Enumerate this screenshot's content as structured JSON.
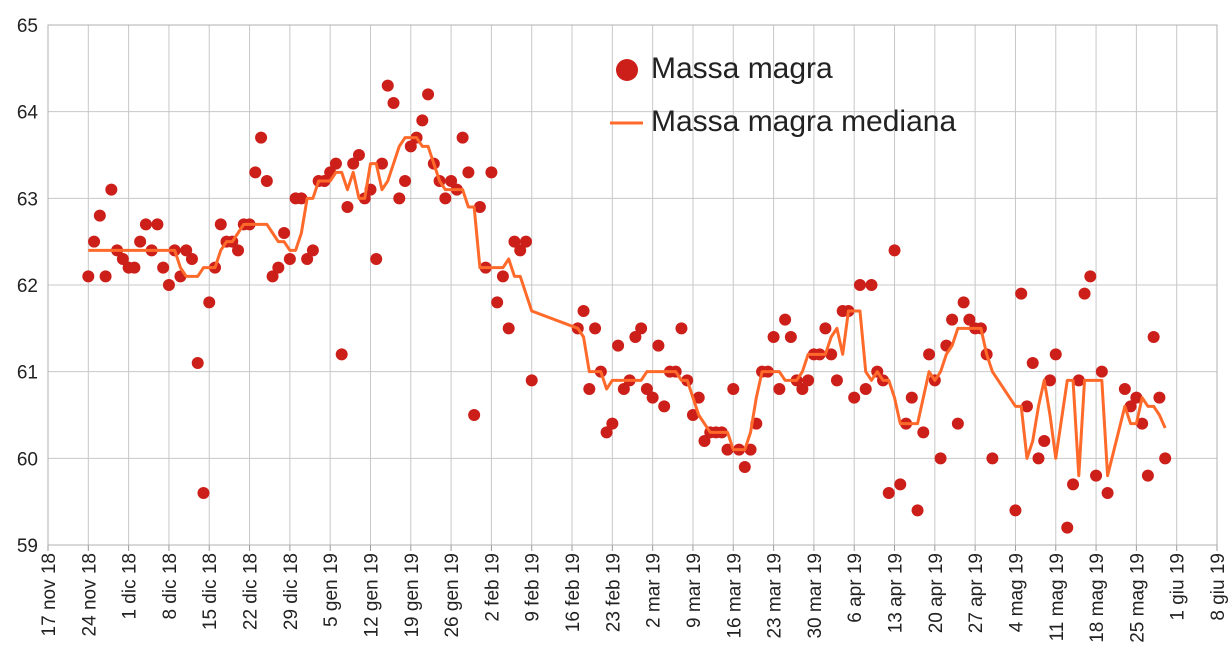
{
  "chart_data": {
    "type": "line",
    "x": [
      "2018-11-24",
      "2018-11-25",
      "2018-11-26",
      "2018-11-27",
      "2018-11-28",
      "2018-11-29",
      "2018-11-30",
      "2018-12-01",
      "2018-12-02",
      "2018-12-03",
      "2018-12-04",
      "2018-12-05",
      "2018-12-06",
      "2018-12-07",
      "2018-12-08",
      "2018-12-09",
      "2018-12-10",
      "2018-12-11",
      "2018-12-12",
      "2018-12-13",
      "2018-12-14",
      "2018-12-15",
      "2018-12-16",
      "2018-12-17",
      "2018-12-18",
      "2018-12-19",
      "2018-12-20",
      "2018-12-21",
      "2018-12-22",
      "2018-12-23",
      "2018-12-24",
      "2018-12-25",
      "2018-12-26",
      "2018-12-27",
      "2018-12-28",
      "2018-12-29",
      "2018-12-30",
      "2018-12-31",
      "2019-01-01",
      "2019-01-02",
      "2019-01-03",
      "2019-01-04",
      "2019-01-05",
      "2019-01-06",
      "2019-01-07",
      "2019-01-08",
      "2019-01-09",
      "2019-01-10",
      "2019-01-11",
      "2019-01-12",
      "2019-01-13",
      "2019-01-14",
      "2019-01-15",
      "2019-01-16",
      "2019-01-17",
      "2019-01-18",
      "2019-01-19",
      "2019-01-20",
      "2019-01-21",
      "2019-01-22",
      "2019-01-23",
      "2019-01-24",
      "2019-01-25",
      "2019-01-26",
      "2019-01-27",
      "2019-01-28",
      "2019-01-29",
      "2019-01-30",
      "2019-01-31",
      "2019-02-01",
      "2019-02-02",
      "2019-02-03",
      "2019-02-04",
      "2019-02-05",
      "2019-02-06",
      "2019-02-07",
      "2019-02-08",
      "2019-02-09",
      "2019-02-17",
      "2019-02-18",
      "2019-02-19",
      "2019-02-20",
      "2019-02-21",
      "2019-02-22",
      "2019-02-23",
      "2019-02-24",
      "2019-02-25",
      "2019-02-26",
      "2019-02-27",
      "2019-02-28",
      "2019-03-01",
      "2019-03-02",
      "2019-03-03",
      "2019-03-04",
      "2019-03-05",
      "2019-03-06",
      "2019-03-07",
      "2019-03-08",
      "2019-03-09",
      "2019-03-10",
      "2019-03-11",
      "2019-03-12",
      "2019-03-13",
      "2019-03-14",
      "2019-03-15",
      "2019-03-16",
      "2019-03-17",
      "2019-03-18",
      "2019-03-19",
      "2019-03-20",
      "2019-03-21",
      "2019-03-22",
      "2019-03-23",
      "2019-03-24",
      "2019-03-25",
      "2019-03-26",
      "2019-03-27",
      "2019-03-28",
      "2019-03-29",
      "2019-03-30",
      "2019-03-31",
      "2019-04-01",
      "2019-04-02",
      "2019-04-03",
      "2019-04-04",
      "2019-04-05",
      "2019-04-06",
      "2019-04-07",
      "2019-04-08",
      "2019-04-09",
      "2019-04-10",
      "2019-04-11",
      "2019-04-12",
      "2019-04-13",
      "2019-04-14",
      "2019-04-15",
      "2019-04-16",
      "2019-04-17",
      "2019-04-18",
      "2019-04-19",
      "2019-04-20",
      "2019-04-21",
      "2019-04-22",
      "2019-04-23",
      "2019-04-24",
      "2019-04-25",
      "2019-04-26",
      "2019-04-27",
      "2019-04-28",
      "2019-04-29",
      "2019-04-30",
      "2019-05-04",
      "2019-05-05",
      "2019-05-06",
      "2019-05-07",
      "2019-05-08",
      "2019-05-09",
      "2019-05-10",
      "2019-05-11",
      "2019-05-13",
      "2019-05-14",
      "2019-05-15",
      "2019-05-16",
      "2019-05-17",
      "2019-05-18",
      "2019-05-19",
      "2019-05-20",
      "2019-05-23",
      "2019-05-24",
      "2019-05-25",
      "2019-05-26",
      "2019-05-27",
      "2019-05-28",
      "2019-05-29",
      "2019-05-30"
    ],
    "series": [
      {
        "name": "Massa magra",
        "type": "scatter",
        "color": "#cc1f1a",
        "values": [
          62.1,
          62.5,
          62.8,
          62.1,
          63.1,
          62.4,
          62.3,
          62.2,
          62.2,
          62.5,
          62.7,
          62.4,
          62.7,
          62.2,
          62.0,
          62.4,
          62.1,
          62.4,
          62.3,
          61.1,
          59.6,
          61.8,
          62.2,
          62.7,
          62.5,
          62.5,
          62.4,
          62.7,
          62.7,
          63.3,
          63.7,
          63.2,
          62.1,
          62.2,
          62.6,
          62.3,
          63.0,
          63.0,
          62.3,
          62.4,
          63.2,
          63.2,
          63.3,
          63.4,
          61.2,
          62.9,
          63.4,
          63.5,
          63.0,
          63.1,
          62.3,
          63.4,
          64.3,
          64.1,
          63.0,
          63.2,
          63.6,
          63.7,
          63.9,
          64.2,
          63.4,
          63.2,
          63.0,
          63.2,
          63.1,
          63.7,
          63.3,
          60.5,
          62.9,
          62.2,
          63.3,
          61.8,
          62.1,
          61.5,
          62.5,
          62.4,
          62.5,
          60.9,
          61.5,
          61.7,
          60.8,
          61.5,
          61.0,
          60.3,
          60.4,
          61.3,
          60.8,
          60.9,
          61.4,
          61.5,
          60.8,
          60.7,
          61.3,
          60.6,
          61.0,
          61.0,
          61.5,
          60.9,
          60.5,
          60.7,
          60.2,
          60.3,
          60.3,
          60.3,
          60.1,
          60.8,
          60.1,
          59.9,
          60.1,
          60.4,
          61.0,
          61.0,
          61.4,
          60.8,
          61.6,
          61.4,
          60.9,
          60.8,
          60.9,
          61.2,
          61.2,
          61.5,
          61.2,
          60.9,
          61.7,
          61.7,
          60.7,
          62.0,
          60.8,
          62.0,
          61.0,
          60.9,
          59.6,
          62.4,
          59.7,
          60.4,
          60.7,
          59.4,
          60.3,
          61.2,
          60.9,
          60.0,
          61.3,
          61.6,
          60.4,
          61.8,
          61.6,
          61.5,
          61.5,
          61.2,
          60.0,
          59.4,
          61.9,
          60.6,
          61.1,
          60.0,
          60.2,
          60.9,
          61.2,
          59.2,
          59.7,
          60.9,
          61.9,
          62.1,
          59.8,
          61.0,
          59.6,
          60.8,
          60.6,
          60.7,
          60.4,
          59.8,
          61.4,
          60.7,
          60.0
        ]
      },
      {
        "name": "Massa magra mediana",
        "type": "line",
        "color": "#ff6a2a",
        "values": [
          62.4,
          62.4,
          62.4,
          62.4,
          62.4,
          62.4,
          62.4,
          62.4,
          62.4,
          62.4,
          62.4,
          62.4,
          62.4,
          62.4,
          62.4,
          62.4,
          62.2,
          62.1,
          62.1,
          62.1,
          62.2,
          62.2,
          62.2,
          62.4,
          62.5,
          62.5,
          62.6,
          62.7,
          62.7,
          62.7,
          62.7,
          62.7,
          62.6,
          62.5,
          62.5,
          62.4,
          62.4,
          62.6,
          63.0,
          63.0,
          63.2,
          63.2,
          63.2,
          63.3,
          63.3,
          63.1,
          63.3,
          63.0,
          63.0,
          63.4,
          63.4,
          63.1,
          63.2,
          63.4,
          63.6,
          63.7,
          63.7,
          63.7,
          63.6,
          63.6,
          63.4,
          63.2,
          63.1,
          63.1,
          63.1,
          63.1,
          62.9,
          62.9,
          62.2,
          62.2,
          62.2,
          62.2,
          62.2,
          62.3,
          62.1,
          62.1,
          61.9,
          61.7,
          61.5,
          61.4,
          61.0,
          61.0,
          61.0,
          60.8,
          60.9,
          60.9,
          60.9,
          60.9,
          60.9,
          60.9,
          61.0,
          61.0,
          61.0,
          61.0,
          61.0,
          61.0,
          60.9,
          60.9,
          60.7,
          60.5,
          60.4,
          60.3,
          60.3,
          60.3,
          60.3,
          60.1,
          60.1,
          60.1,
          60.3,
          60.7,
          61.0,
          61.0,
          61.0,
          61.0,
          60.9,
          60.9,
          60.9,
          61.0,
          61.2,
          61.2,
          61.2,
          61.2,
          61.4,
          61.5,
          61.2,
          61.7,
          61.7,
          61.7,
          61.0,
          60.9,
          61.0,
          60.9,
          60.9,
          60.7,
          60.4,
          60.4,
          60.4,
          60.4,
          60.7,
          61.0,
          60.9,
          61.0,
          61.2,
          61.3,
          61.5,
          61.5,
          61.5,
          61.5,
          61.5,
          61.2,
          61.0,
          60.6,
          60.6,
          60.0,
          60.2,
          60.6,
          60.9,
          60.5,
          60.0,
          60.9,
          60.9,
          59.8,
          60.9,
          60.9,
          60.9,
          60.9,
          59.8,
          60.6,
          60.4,
          60.4,
          60.7,
          60.6,
          60.6,
          60.5,
          60.35
        ]
      }
    ],
    "xlim": [
      "2018-11-17",
      "2019-06-08"
    ],
    "xticks": [
      {
        "value": "2018-11-17",
        "label": "17 nov 18"
      },
      {
        "value": "2018-11-24",
        "label": "24 nov 18"
      },
      {
        "value": "2018-12-01",
        "label": "1 dic 18"
      },
      {
        "value": "2018-12-08",
        "label": "8 dic 18"
      },
      {
        "value": "2018-12-15",
        "label": "15 dic 18"
      },
      {
        "value": "2018-12-22",
        "label": "22 dic 18"
      },
      {
        "value": "2018-12-29",
        "label": "29 dic 18"
      },
      {
        "value": "2019-01-05",
        "label": "5 gen 19"
      },
      {
        "value": "2019-01-12",
        "label": "12 gen 19"
      },
      {
        "value": "2019-01-19",
        "label": "19 gen 19"
      },
      {
        "value": "2019-01-26",
        "label": "26 gen 19"
      },
      {
        "value": "2019-02-02",
        "label": "2 feb 19"
      },
      {
        "value": "2019-02-09",
        "label": "9 feb 19"
      },
      {
        "value": "2019-02-16",
        "label": "16 feb 19"
      },
      {
        "value": "2019-02-23",
        "label": "23 feb 19"
      },
      {
        "value": "2019-03-02",
        "label": "2 mar 19"
      },
      {
        "value": "2019-03-09",
        "label": "9 mar 19"
      },
      {
        "value": "2019-03-16",
        "label": "16 mar 19"
      },
      {
        "value": "2019-03-23",
        "label": "23 mar 19"
      },
      {
        "value": "2019-03-30",
        "label": "30 mar 19"
      },
      {
        "value": "2019-04-06",
        "label": "6 apr 19"
      },
      {
        "value": "2019-04-13",
        "label": "13 apr 19"
      },
      {
        "value": "2019-04-20",
        "label": "20 apr 19"
      },
      {
        "value": "2019-04-27",
        "label": "27 apr 19"
      },
      {
        "value": "2019-05-04",
        "label": "4 mag 19"
      },
      {
        "value": "2019-05-11",
        "label": "11 mag 19"
      },
      {
        "value": "2019-05-18",
        "label": "18 mag 19"
      },
      {
        "value": "2019-05-25",
        "label": "25 mag 19"
      },
      {
        "value": "2019-06-01",
        "label": "1 giu 19"
      },
      {
        "value": "2019-06-08",
        "label": "8 giu 19"
      }
    ],
    "ylim": [
      59,
      65
    ],
    "yticks": [
      59,
      60,
      61,
      62,
      63,
      64,
      65
    ],
    "grid": true
  }
}
